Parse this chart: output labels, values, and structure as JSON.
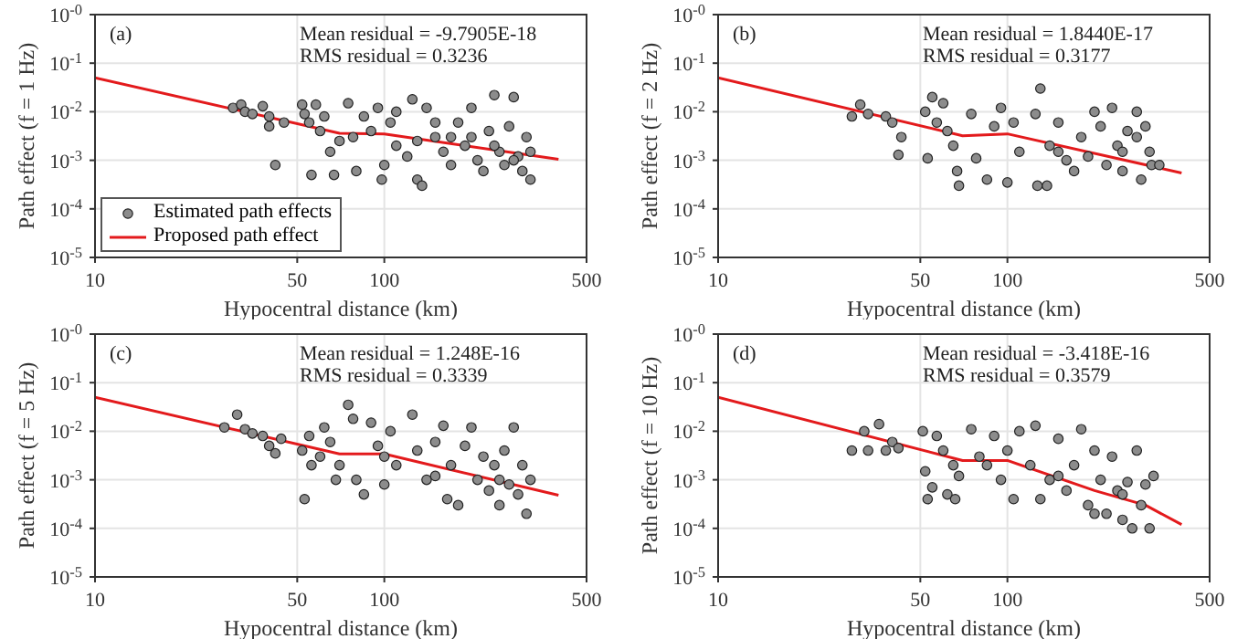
{
  "chart_data": [
    {
      "type": "scatter",
      "annotations": [
        "(a)",
        "Mean residual = -9.7905E-18",
        "RMS residual = 0.3236"
      ],
      "xlabel": "Hypocentral distance (km)",
      "ylabel": "Path effect (f = 1 Hz)",
      "log": "xy",
      "xlim": [
        10,
        500
      ],
      "xticks": [
        10,
        50,
        100,
        500
      ],
      "ylim": [
        1e-05,
        1
      ],
      "yticks": [
        {
          "value": 1e-05,
          "label": "10$^{-5}$"
        },
        {
          "value": 0.0001,
          "label": "10$^{-4}$"
        },
        {
          "value": 0.001,
          "label": "10$^{-3}$"
        },
        {
          "value": 0.01,
          "label": "10$^{-2}$"
        },
        {
          "value": 0.1,
          "label": "10$^{-1}$"
        },
        {
          "value": 1,
          "label": "10$^{-0}$"
        }
      ],
      "grid": true,
      "legend": "bottom left",
      "line_style": "solid",
      "series": [
        {
          "name": "Estimated path effects",
          "marker": "circle",
          "color": "#8c8c8c",
          "x": [
            30,
            32,
            33,
            35,
            38,
            40,
            40,
            42,
            45,
            52,
            53,
            55,
            56,
            58,
            60,
            62,
            65,
            67,
            70,
            75,
            78,
            80,
            85,
            90,
            95,
            98,
            100,
            105,
            110,
            120,
            125,
            130,
            135,
            140,
            150,
            160,
            170,
            180,
            190,
            200,
            210,
            220,
            230,
            240,
            250,
            260,
            270,
            280,
            290,
            300,
            310,
            320,
            320,
            200,
            150,
            110,
            130,
            240,
            170,
            280
          ],
          "values": [
            0.012,
            0.014,
            0.01,
            0.009,
            0.013,
            0.008,
            0.005,
            0.0008,
            0.006,
            0.014,
            0.009,
            0.006,
            0.0005,
            0.014,
            0.004,
            0.008,
            0.0015,
            0.0005,
            0.0025,
            0.015,
            0.003,
            0.0006,
            0.008,
            0.004,
            0.012,
            0.0004,
            0.0008,
            0.006,
            0.002,
            0.0012,
            0.018,
            0.0004,
            0.0003,
            0.012,
            0.003,
            0.0015,
            0.0008,
            0.006,
            0.002,
            0.012,
            0.001,
            0.0006,
            0.004,
            0.022,
            0.0015,
            0.0008,
            0.005,
            0.02,
            0.0012,
            0.0006,
            0.003,
            0.0004,
            0.0015,
            0.003,
            0.006,
            0.01,
            0.0025,
            0.002,
            0.003,
            0.001
          ]
        },
        {
          "name": "Proposed path effect",
          "type": "line",
          "marker": "none",
          "color": "#e31a1c",
          "x": [
            10,
            70,
            100,
            400
          ],
          "values": [
            0.05,
            0.0036,
            0.0035,
            0.00105
          ]
        }
      ]
    },
    {
      "type": "scatter",
      "annotations": [
        "(b)",
        "Mean residual = 1.8440E-17",
        "RMS residual = 0.3177"
      ],
      "xlabel": "Hypocentral distance (km)",
      "ylabel": "Path effect (f = 2 Hz)",
      "log": "xy",
      "xlim": [
        10,
        500
      ],
      "xticks": [
        10,
        50,
        100,
        500
      ],
      "ylim": [
        1e-05,
        1
      ],
      "yticks": [
        {
          "value": 1e-05,
          "label": "10$^{-5}$"
        },
        {
          "value": 0.0001,
          "label": "10$^{-4}$"
        },
        {
          "value": 0.001,
          "label": "10$^{-3}$"
        },
        {
          "value": 0.01,
          "label": "10$^{-2}$"
        },
        {
          "value": 0.1,
          "label": "10$^{-1}$"
        },
        {
          "value": 1,
          "label": "10$^{-0}$"
        }
      ],
      "grid": true,
      "line_style": "solid",
      "series": [
        {
          "marker": "circle",
          "color": "#8c8c8c",
          "x": [
            29,
            31,
            33,
            38,
            40,
            42,
            43,
            52,
            53,
            55,
            57,
            60,
            62,
            65,
            67,
            68,
            75,
            78,
            85,
            90,
            95,
            100,
            105,
            110,
            125,
            130,
            127,
            137,
            140,
            150,
            160,
            170,
            180,
            190,
            200,
            210,
            220,
            230,
            240,
            250,
            260,
            280,
            290,
            300,
            310,
            315,
            335,
            150,
            250,
            280
          ],
          "values": [
            0.008,
            0.014,
            0.009,
            0.008,
            0.006,
            0.0013,
            0.003,
            0.01,
            0.0011,
            0.02,
            0.006,
            0.015,
            0.004,
            0.002,
            0.0006,
            0.0003,
            0.009,
            0.0011,
            0.0004,
            0.005,
            0.012,
            0.00035,
            0.006,
            0.0015,
            0.009,
            0.03,
            0.0003,
            0.0003,
            0.002,
            0.006,
            0.001,
            0.0006,
            0.003,
            0.0012,
            0.01,
            0.005,
            0.0008,
            0.012,
            0.002,
            0.0006,
            0.004,
            0.01,
            0.0004,
            0.005,
            0.0015,
            0.0008,
            0.0008,
            0.0015,
            0.0015,
            0.003
          ]
        },
        {
          "type": "line",
          "marker": "none",
          "color": "#e31a1c",
          "x": [
            10,
            70,
            100,
            400
          ],
          "values": [
            0.05,
            0.0032,
            0.0035,
            0.00055
          ]
        }
      ]
    },
    {
      "type": "scatter",
      "annotations": [
        "(c)",
        "Mean residual = 1.248E-16",
        "RMS residual = 0.3339"
      ],
      "xlabel": "Hypocentral distance (km)",
      "ylabel": "Path effect (f = 5 Hz)",
      "log": "xy",
      "xlim": [
        10,
        500
      ],
      "xticks": [
        10,
        50,
        100,
        500
      ],
      "ylim": [
        1e-05,
        1
      ],
      "yticks": [
        {
          "value": 1e-05,
          "label": "10$^{-5}$"
        },
        {
          "value": 0.0001,
          "label": "10$^{-4}$"
        },
        {
          "value": 0.001,
          "label": "10$^{-3}$"
        },
        {
          "value": 0.01,
          "label": "10$^{-2}$"
        },
        {
          "value": 0.1,
          "label": "10$^{-1}$"
        },
        {
          "value": 1,
          "label": "10$^{-0}$"
        }
      ],
      "grid": true,
      "line_style": "solid",
      "series": [
        {
          "marker": "circle",
          "color": "#8c8c8c",
          "x": [
            28,
            31,
            33,
            35,
            38,
            40,
            42,
            44,
            52,
            53,
            55,
            56,
            60,
            62,
            65,
            68,
            70,
            75,
            78,
            80,
            85,
            90,
            95,
            100,
            105,
            110,
            125,
            130,
            140,
            150,
            160,
            165,
            170,
            180,
            190,
            200,
            210,
            220,
            230,
            240,
            250,
            260,
            270,
            280,
            290,
            300,
            310,
            320,
            150,
            250,
            100
          ],
          "values": [
            0.012,
            0.022,
            0.011,
            0.009,
            0.008,
            0.005,
            0.0035,
            0.007,
            0.004,
            0.0004,
            0.008,
            0.002,
            0.003,
            0.012,
            0.006,
            0.001,
            0.002,
            0.035,
            0.018,
            0.001,
            0.0005,
            0.015,
            0.005,
            0.0008,
            0.01,
            0.002,
            0.022,
            0.004,
            0.001,
            0.006,
            0.013,
            0.0004,
            0.002,
            0.0003,
            0.005,
            0.012,
            0.001,
            0.003,
            0.0006,
            0.002,
            0.0003,
            0.004,
            0.0008,
            0.012,
            0.0005,
            0.002,
            0.0002,
            0.001,
            0.0012,
            0.001,
            0.003
          ]
        },
        {
          "type": "line",
          "marker": "none",
          "color": "#e31a1c",
          "x": [
            10,
            70,
            100,
            400
          ],
          "values": [
            0.05,
            0.0034,
            0.0034,
            0.00048
          ]
        }
      ]
    },
    {
      "type": "scatter",
      "annotations": [
        "(d)",
        "Mean residual = -3.418E-16",
        "RMS residual = 0.3579"
      ],
      "xlabel": "Hypocentral distance (km)",
      "ylabel": "Path effect (f = 10 Hz)",
      "log": "xy",
      "xlim": [
        10,
        500
      ],
      "xticks": [
        10,
        50,
        100,
        500
      ],
      "ylim": [
        1e-05,
        1
      ],
      "yticks": [
        {
          "value": 1e-05,
          "label": "10$^{-5}$"
        },
        {
          "value": 0.0001,
          "label": "10$^{-4}$"
        },
        {
          "value": 0.001,
          "label": "10$^{-3}$"
        },
        {
          "value": 0.01,
          "label": "10$^{-2}$"
        },
        {
          "value": 0.1,
          "label": "10$^{-1}$"
        },
        {
          "value": 1,
          "label": "10$^{-0}$"
        }
      ],
      "grid": true,
      "line_style": "solid",
      "series": [
        {
          "marker": "circle",
          "color": "#8c8c8c",
          "x": [
            29,
            32,
            33,
            36,
            38,
            40,
            42,
            51,
            52,
            53,
            55,
            57,
            60,
            62,
            65,
            66,
            68,
            75,
            80,
            85,
            90,
            95,
            100,
            105,
            110,
            120,
            125,
            130,
            140,
            150,
            160,
            170,
            180,
            190,
            200,
            210,
            220,
            230,
            240,
            250,
            260,
            270,
            280,
            290,
            300,
            310,
            320,
            150,
            250,
            200
          ],
          "values": [
            0.004,
            0.01,
            0.004,
            0.014,
            0.004,
            0.006,
            0.0045,
            0.01,
            0.0015,
            0.0004,
            0.0007,
            0.008,
            0.004,
            0.0005,
            0.002,
            0.0004,
            0.0012,
            0.011,
            0.003,
            0.002,
            0.008,
            0.001,
            0.004,
            0.0004,
            0.01,
            0.002,
            0.013,
            0.0004,
            0.001,
            0.007,
            0.0006,
            0.002,
            0.011,
            0.0003,
            0.004,
            0.001,
            0.0002,
            0.003,
            0.0006,
            0.00015,
            0.0009,
            0.0001,
            0.004,
            0.0003,
            0.0008,
            0.0001,
            0.0012,
            0.0012,
            0.0005,
            0.0002
          ]
        },
        {
          "type": "line",
          "marker": "none",
          "color": "#e31a1c",
          "x": [
            10,
            70,
            100,
            200,
            300,
            400
          ],
          "values": [
            0.05,
            0.0025,
            0.0025,
            0.0006,
            0.0003,
            0.00012
          ]
        }
      ]
    }
  ]
}
